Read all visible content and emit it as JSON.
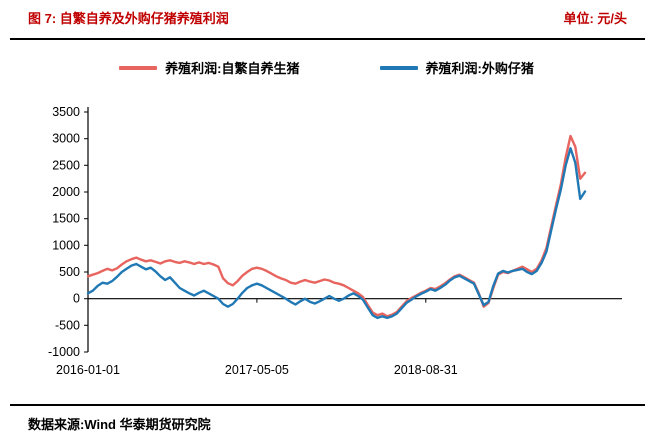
{
  "header": {
    "title": "图 7:  自繁自养及外购仔猪养殖利润",
    "unit_label": "单位: 元/头"
  },
  "legend": [
    {
      "label": "养殖利润:自繁自养生猪",
      "color": "#e8645f"
    },
    {
      "label": "养殖利润:外购仔猪",
      "color": "#2079b4"
    }
  ],
  "footer": {
    "source": "数据来源:Wind  华泰期货研究院"
  },
  "chart_data": {
    "type": "line",
    "title": "自繁自养及外购仔猪养殖利润",
    "unit": "元/头",
    "grid": false,
    "legend_position": "top",
    "ylim": [
      -1000,
      3500
    ],
    "y_tick_step": 500,
    "x_tick_labels": [
      "2016-01-01",
      "2017-05-05",
      "2018-08-31"
    ],
    "x_tick_indices": [
      0,
      35,
      70
    ],
    "n_points": 104,
    "series": [
      {
        "name": "养殖利润:自繁自养生猪",
        "color": "#e8645f",
        "values": [
          420,
          450,
          480,
          520,
          560,
          530,
          570,
          640,
          700,
          740,
          770,
          730,
          700,
          720,
          690,
          660,
          700,
          720,
          690,
          670,
          700,
          680,
          650,
          680,
          650,
          670,
          640,
          600,
          380,
          290,
          250,
          330,
          430,
          500,
          560,
          580,
          560,
          520,
          470,
          420,
          380,
          350,
          300,
          280,
          320,
          350,
          320,
          300,
          330,
          360,
          340,
          300,
          280,
          250,
          200,
          150,
          100,
          30,
          -120,
          -260,
          -310,
          -280,
          -330,
          -300,
          -250,
          -150,
          -50,
          10,
          60,
          110,
          150,
          200,
          180,
          230,
          290,
          360,
          420,
          450,
          400,
          350,
          300,
          100,
          -150,
          -80,
          200,
          450,
          500,
          480,
          520,
          560,
          600,
          550,
          500,
          560,
          720,
          950,
          1350,
          1750,
          2150,
          2650,
          3050,
          2850,
          2250,
          2360
        ]
      },
      {
        "name": "养殖利润:外购仔猪",
        "color": "#2079b4",
        "values": [
          100,
          150,
          240,
          300,
          280,
          330,
          410,
          500,
          560,
          620,
          650,
          600,
          550,
          580,
          510,
          420,
          350,
          400,
          300,
          200,
          150,
          100,
          60,
          110,
          150,
          100,
          50,
          0,
          -100,
          -150,
          -100,
          0,
          110,
          200,
          250,
          280,
          250,
          200,
          150,
          100,
          50,
          0,
          -60,
          -110,
          -50,
          0,
          -60,
          -90,
          -50,
          0,
          50,
          0,
          -40,
          0,
          60,
          100,
          50,
          -20,
          -170,
          -310,
          -360,
          -330,
          -360,
          -330,
          -280,
          -180,
          -80,
          -20,
          40,
          90,
          130,
          180,
          150,
          200,
          260,
          340,
          400,
          430,
          380,
          330,
          280,
          80,
          -120,
          -60,
          240,
          470,
          520,
          490,
          520,
          540,
          560,
          500,
          460,
          520,
          670,
          880,
          1280,
          1680,
          2050,
          2500,
          2820,
          2550,
          1870,
          2010
        ]
      }
    ]
  }
}
